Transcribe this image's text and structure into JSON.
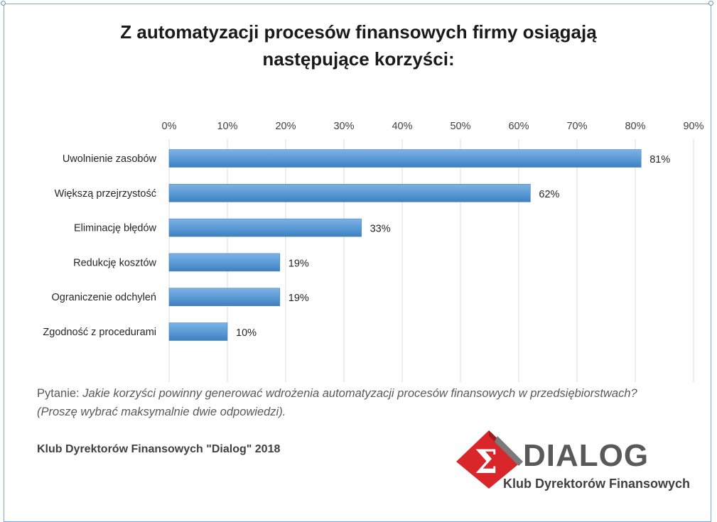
{
  "title": {
    "line1": "Z automatyzacji procesów finansowych firmy osiągają",
    "line2": "następujące korzyści:"
  },
  "chart_data": {
    "type": "bar",
    "orientation": "horizontal",
    "categories": [
      "Uwolnienie zasobów",
      "Większą przejrzystość",
      "Eliminację błędów",
      "Redukcję kosztów",
      "Ograniczenie odchyleń",
      "Zgodność z procedurami"
    ],
    "values": [
      81,
      62,
      33,
      19,
      19,
      10
    ],
    "value_labels": [
      "81%",
      "62%",
      "33%",
      "19%",
      "19%",
      "10%"
    ],
    "xlim": [
      0,
      90
    ],
    "xticks": [
      "0%",
      "10%",
      "20%",
      "30%",
      "40%",
      "50%",
      "60%",
      "70%",
      "80%",
      "90%"
    ],
    "axis_position": "top",
    "grid": true,
    "bar_color": "#5b9bd5"
  },
  "question": {
    "prefix": "Pytanie: ",
    "text": "Jakie korzyści powinny generować wdrożenia automatyzacji procesów finansowych w przedsiębiorstwach? (Proszę wybrać maksymalnie dwie odpowiedzi)."
  },
  "source": "Klub Dyrektorów Finansowych \"Dialog\" 2018",
  "logo": {
    "symbol": "Σ",
    "name": "DIALOG",
    "tagline": "Klub Dyrektorów Finansowych",
    "accent": "#d9262b"
  }
}
